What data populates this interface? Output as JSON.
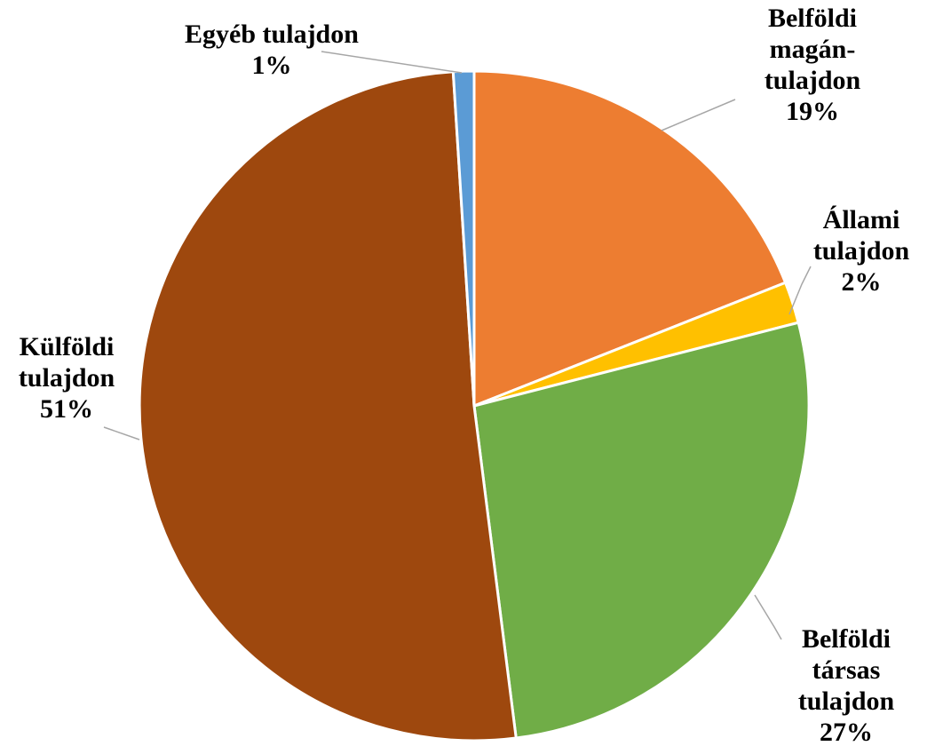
{
  "chart_data": {
    "type": "pie",
    "title": "",
    "start": "top, clockwise",
    "slices": [
      {
        "label_lines": [
          "Belföldi",
          "magán-",
          "tulajdon"
        ],
        "pct_label": "19%",
        "value": 19,
        "color": "#ED7D31"
      },
      {
        "label_lines": [
          "Állami",
          "tulajdon"
        ],
        "pct_label": "2%",
        "value": 2,
        "color": "#FFC000"
      },
      {
        "label_lines": [
          "Belföldi",
          "társas",
          "tulajdon"
        ],
        "pct_label": "27%",
        "value": 27,
        "color": "#70AD47"
      },
      {
        "label_lines": [
          "Külföldi",
          "tulajdon"
        ],
        "pct_label": "51%",
        "value": 51,
        "color": "#9E480E"
      },
      {
        "label_lines": [
          "Egyéb tulajdon"
        ],
        "pct_label": "1%",
        "value": 1,
        "color": "#5B9BD5"
      }
    ]
  }
}
